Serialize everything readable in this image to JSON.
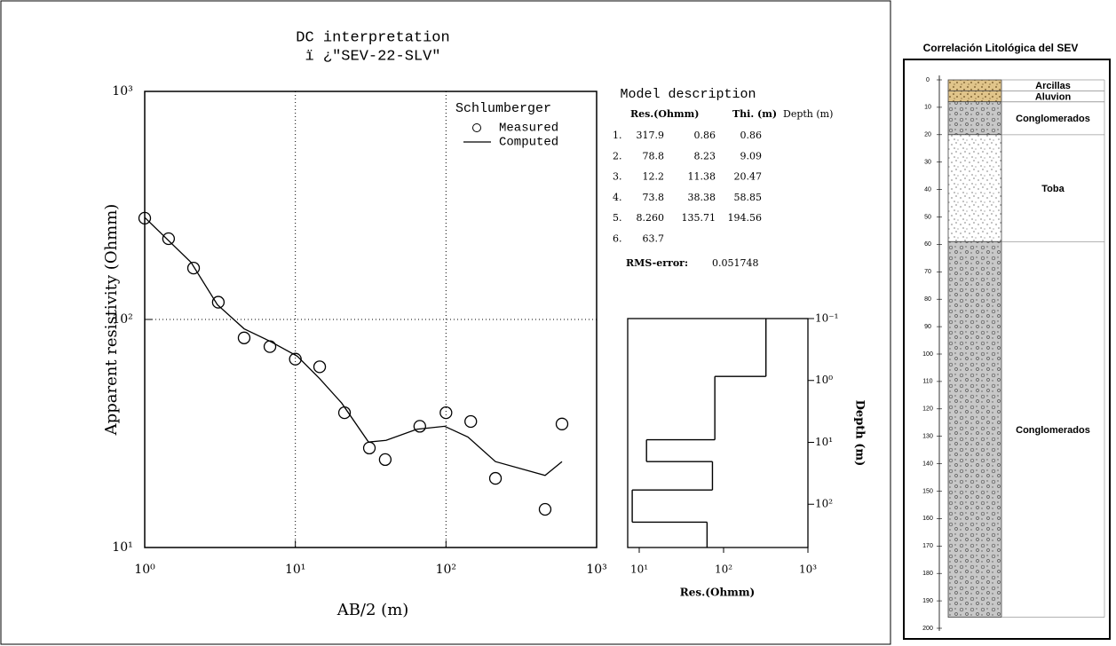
{
  "chart_data": [
    {
      "type": "line",
      "title": "DC interpretation",
      "subtitle": "ï ¿\"SEV-22-SLV\"",
      "xlabel": "AB/2 (m)",
      "ylabel": "Apparent resistivity (Ohmm)",
      "xscale": "log",
      "yscale": "log",
      "xlim": [
        1,
        1000
      ],
      "ylim": [
        10,
        1000
      ],
      "xticks": [
        {
          "value": 1,
          "label": "10⁰"
        },
        {
          "value": 10,
          "label": "10¹"
        },
        {
          "value": 100,
          "label": "10²"
        },
        {
          "value": 1000,
          "label": "10³"
        }
      ],
      "yticks": [
        {
          "value": 10,
          "label": "10¹"
        },
        {
          "value": 100,
          "label": "10²"
        },
        {
          "value": 1000,
          "label": "10³"
        }
      ],
      "grid": true,
      "legend_title": "Schlumberger",
      "color": "#000000",
      "series": [
        {
          "name": "Measured",
          "marker": "circle",
          "x": [
            1,
            1.44,
            2.11,
            3.08,
            4.57,
            6.78,
            10,
            14.5,
            21.2,
            31,
            39.5,
            67,
            100,
            146,
            213,
            455,
            589
          ],
          "values": [
            278,
            226,
            168,
            119,
            83,
            76,
            67,
            62,
            39,
            27.3,
            24.3,
            34,
            39,
            35.7,
            20.1,
            14.7,
            34.8
          ]
        },
        {
          "name": "Computed",
          "marker": "line",
          "x": [
            1,
            2.03,
            3.04,
            4.57,
            6.85,
            10.3,
            14.5,
            20.3,
            30.6,
            40,
            64,
            98,
            140,
            213,
            455,
            589
          ],
          "values": [
            280,
            178,
            116,
            91,
            80,
            69,
            55,
            43,
            29,
            29.5,
            33,
            34,
            30.5,
            23.8,
            20.7,
            23.8
          ]
        }
      ]
    },
    {
      "type": "step",
      "xlabel": "Res.(Ohmm)",
      "ylabel": "Depth (m)",
      "xscale": "log",
      "yscale": "log",
      "xlim": [
        7.3,
        1000
      ],
      "ylim": [
        0.1,
        500
      ],
      "xticks": [
        {
          "value": 10,
          "label": "10¹"
        },
        {
          "value": 100,
          "label": "10²"
        },
        {
          "value": 1000,
          "label": "10³"
        }
      ],
      "yticks": [
        {
          "value": 0.1,
          "label": "10⁻¹"
        },
        {
          "value": 1,
          "label": "10⁰"
        },
        {
          "value": 10,
          "label": "10¹"
        },
        {
          "value": 100,
          "label": "10²"
        }
      ],
      "resistivity": [
        317.9,
        78.8,
        12.2,
        73.8,
        8.26,
        63.7
      ],
      "depth": [
        0.86,
        9.09,
        20.47,
        58.85,
        194.56
      ]
    },
    {
      "type": "column",
      "title": "Correlación Litológica del SEV",
      "ylim": [
        0,
        200
      ],
      "yticks": [
        0,
        10,
        20,
        30,
        40,
        50,
        60,
        70,
        80,
        90,
        100,
        110,
        120,
        130,
        140,
        150,
        160,
        170,
        180,
        190,
        200
      ],
      "layers": [
        {
          "name": "Arcillas",
          "top": 0,
          "bottom": 4,
          "pattern": "sand"
        },
        {
          "name": "Aluvion",
          "top": 4,
          "bottom": 8,
          "pattern": "sand"
        },
        {
          "name": "Conglomerados",
          "top": 8,
          "bottom": 20,
          "pattern": "gravel"
        },
        {
          "name": "Toba",
          "top": 20,
          "bottom": 59,
          "pattern": "dots"
        },
        {
          "name": "Conglomerados",
          "top": 59,
          "bottom": 196,
          "pattern": "gravel"
        }
      ]
    }
  ],
  "model_description": {
    "title": "Model description",
    "headers": [
      "Res.(Ohmm)",
      "Thi. (m)",
      "Depth (m)"
    ],
    "rows": [
      [
        "1.",
        "317.9",
        "0.86",
        "0.86"
      ],
      [
        "2.",
        "78.8",
        "8.23",
        "9.09"
      ],
      [
        "3.",
        "12.2",
        "11.38",
        "20.47"
      ],
      [
        "4.",
        "73.8",
        "38.38",
        "58.85"
      ],
      [
        "5.",
        "8.260",
        "135.71",
        "194.56"
      ],
      [
        "6.",
        "63.7"
      ]
    ],
    "rms_label": "RMS-error:",
    "rms_value": "0.051748"
  }
}
